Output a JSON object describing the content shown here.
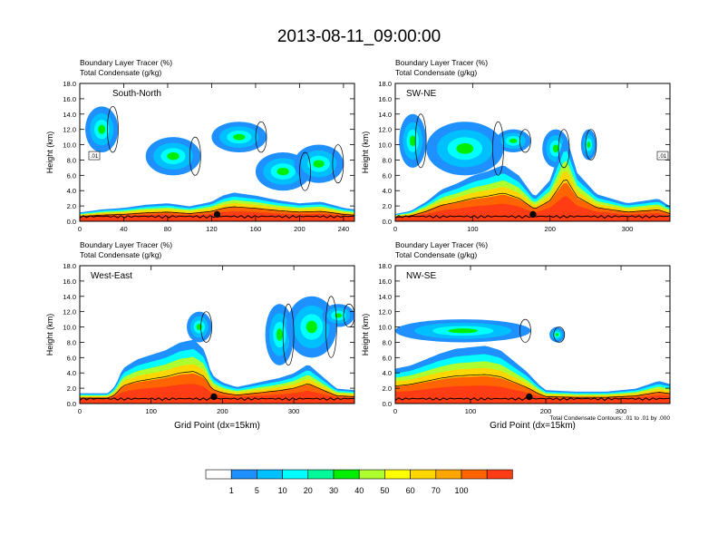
{
  "figure": {
    "title": "2013-08-11_09:00:00",
    "footnote": "Total Condensate Contours: .01 to .01 by .000"
  },
  "chart_data": [
    {
      "type": "heatmap",
      "panel_label": "South-North",
      "title_line1": "Boundary Layer Tracer   (%)",
      "title_line2": "Total Condensate   (g/kg)",
      "ylabel": "Height (km)",
      "xlabel": "",
      "xlim": [
        0,
        250
      ],
      "ylim": [
        0,
        18
      ],
      "xticks": [
        0,
        40,
        80,
        120,
        160,
        200,
        240
      ],
      "yticks": [
        "0.0",
        "2.0",
        "4.0",
        "6.0",
        "8.0",
        "10.0",
        "12.0",
        "14.0",
        "16.0",
        "18.0"
      ],
      "boundary_layer_depth_km": [
        [
          0,
          0.8
        ],
        [
          20,
          1.2
        ],
        [
          40,
          1.4
        ],
        [
          60,
          1.8
        ],
        [
          80,
          2.0
        ],
        [
          100,
          1.6
        ],
        [
          120,
          2.2
        ],
        [
          130,
          3.0
        ],
        [
          140,
          3.4
        ],
        [
          160,
          3.0
        ],
        [
          180,
          2.4
        ],
        [
          200,
          2.0
        ],
        [
          220,
          2.2
        ],
        [
          240,
          1.4
        ],
        [
          250,
          1.2
        ]
      ],
      "upper_plumes": [
        [
          5,
          35,
          9,
          15
        ],
        [
          60,
          110,
          6,
          11
        ],
        [
          120,
          170,
          9,
          13
        ],
        [
          160,
          210,
          4,
          9
        ],
        [
          195,
          240,
          5,
          10
        ]
      ],
      "contour_label": ".01",
      "marker_x": 125
    },
    {
      "type": "heatmap",
      "panel_label": "SW-NE",
      "title_line1": "Boundary Layer Tracer   (%)",
      "title_line2": "Total Condensate   (g/kg)",
      "ylabel": "Height (km)",
      "xlabel": "",
      "xlim": [
        0,
        355
      ],
      "ylim": [
        0,
        18
      ],
      "xticks": [
        0,
        100,
        200,
        300
      ],
      "yticks": [
        "0.0",
        "2.0",
        "4.0",
        "6.0",
        "8.0",
        "10.0",
        "12.0",
        "14.0",
        "16.0",
        "18.0"
      ],
      "boundary_layer_depth_km": [
        [
          0,
          0.6
        ],
        [
          20,
          1.0
        ],
        [
          40,
          2.2
        ],
        [
          60,
          3.8
        ],
        [
          80,
          4.6
        ],
        [
          100,
          5.6
        ],
        [
          120,
          6.2
        ],
        [
          140,
          7.0
        ],
        [
          160,
          5.6
        ],
        [
          180,
          2.8
        ],
        [
          200,
          5.0
        ],
        [
          220,
          11.0
        ],
        [
          235,
          6.0
        ],
        [
          260,
          3.2
        ],
        [
          300,
          2.0
        ],
        [
          340,
          2.6
        ],
        [
          355,
          1.6
        ]
      ],
      "upper_plumes": [
        [
          5,
          40,
          7,
          14
        ],
        [
          40,
          140,
          6,
          13
        ],
        [
          130,
          175,
          9,
          12
        ],
        [
          190,
          225,
          7,
          12
        ],
        [
          240,
          260,
          8,
          12
        ]
      ],
      "contour_label": ".01",
      "marker_x": 178
    },
    {
      "type": "heatmap",
      "panel_label": "West-East",
      "title_line1": "Boundary Layer Tracer   (%)",
      "title_line2": "Total Condensate   (g/kg)",
      "ylabel": "Height (km)",
      "xlabel": "Grid Point (dx=15km)",
      "xlim": [
        0,
        385
      ],
      "ylim": [
        0,
        18
      ],
      "xticks": [
        0,
        100,
        200,
        300
      ],
      "yticks": [
        "0.0",
        "2.0",
        "4.0",
        "6.0",
        "8.0",
        "10.0",
        "12.0",
        "14.0",
        "16.0",
        "18.0"
      ],
      "boundary_layer_depth_km": [
        [
          0,
          1.0
        ],
        [
          40,
          1.0
        ],
        [
          50,
          2.0
        ],
        [
          60,
          4.2
        ],
        [
          80,
          5.4
        ],
        [
          100,
          6.0
        ],
        [
          120,
          6.6
        ],
        [
          140,
          7.6
        ],
        [
          160,
          8.0
        ],
        [
          175,
          6.6
        ],
        [
          185,
          3.4
        ],
        [
          200,
          2.4
        ],
        [
          220,
          1.8
        ],
        [
          260,
          2.6
        ],
        [
          280,
          3.0
        ],
        [
          300,
          3.6
        ],
        [
          320,
          4.8
        ],
        [
          340,
          3.2
        ],
        [
          360,
          1.6
        ],
        [
          385,
          1.4
        ]
      ],
      "upper_plumes": [
        [
          150,
          185,
          8,
          12
        ],
        [
          260,
          300,
          5,
          13
        ],
        [
          290,
          360,
          6,
          14
        ],
        [
          340,
          385,
          10,
          13
        ]
      ],
      "contour_label": "",
      "marker_x": 188
    },
    {
      "type": "heatmap",
      "panel_label": "NW-SE",
      "title_line1": "Boundary Layer Tracer   (%)",
      "title_line2": "Total Condensate   (g/kg)",
      "ylabel": "Height (km)",
      "xlabel": "Grid Point (dx=15km)",
      "xlim": [
        0,
        365
      ],
      "ylim": [
        0,
        18
      ],
      "xticks": [
        0,
        100,
        200,
        300
      ],
      "yticks": [
        "0.0",
        "2.0",
        "4.0",
        "6.0",
        "8.0",
        "10.0",
        "12.0",
        "14.0",
        "16.0",
        "18.0"
      ],
      "boundary_layer_depth_km": [
        [
          0,
          4.2
        ],
        [
          20,
          4.6
        ],
        [
          40,
          5.4
        ],
        [
          60,
          6.2
        ],
        [
          80,
          6.8
        ],
        [
          100,
          7.0
        ],
        [
          120,
          7.2
        ],
        [
          140,
          6.6
        ],
        [
          160,
          5.0
        ],
        [
          175,
          3.8
        ],
        [
          190,
          2.2
        ],
        [
          200,
          1.4
        ],
        [
          240,
          1.2
        ],
        [
          280,
          1.2
        ],
        [
          320,
          1.6
        ],
        [
          350,
          2.6
        ],
        [
          365,
          2.2
        ]
      ],
      "upper_plumes": [
        [
          0,
          180,
          8,
          11
        ],
        [
          205,
          225,
          8,
          10
        ]
      ],
      "contour_label": "",
      "marker_x": 178
    }
  ],
  "colorbar": {
    "labels": [
      "1",
      "5",
      "10",
      "20",
      "30",
      "40",
      "50",
      "60",
      "70",
      "100"
    ],
    "colors": [
      "#ffffff",
      "#1e90ff",
      "#00bfff",
      "#00ffff",
      "#00fa9a",
      "#00ee00",
      "#adff2f",
      "#ffff00",
      "#ffd700",
      "#ffa500",
      "#ff6400",
      "#ff3c14"
    ]
  }
}
